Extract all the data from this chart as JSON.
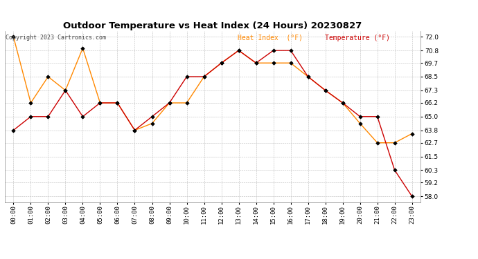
{
  "title": "Outdoor Temperature vs Heat Index (24 Hours) 20230827",
  "copyright": "Copyright 2023 Cartronics.com",
  "legend_heat_index": "Heat Index  (°F)",
  "legend_temperature": "Temperature (°F)",
  "hours": [
    "00:00",
    "01:00",
    "02:00",
    "03:00",
    "04:00",
    "05:00",
    "06:00",
    "07:00",
    "08:00",
    "09:00",
    "10:00",
    "11:00",
    "12:00",
    "13:00",
    "14:00",
    "15:00",
    "16:00",
    "17:00",
    "18:00",
    "19:00",
    "20:00",
    "21:00",
    "22:00",
    "23:00"
  ],
  "temperature": [
    63.8,
    65.0,
    65.0,
    67.3,
    65.0,
    66.2,
    66.2,
    63.8,
    65.0,
    66.2,
    68.5,
    68.5,
    69.7,
    70.8,
    69.7,
    70.8,
    70.8,
    68.5,
    67.3,
    66.2,
    65.0,
    65.0,
    60.3,
    58.0
  ],
  "heat_index": [
    72.0,
    66.2,
    68.5,
    67.3,
    71.0,
    66.2,
    66.2,
    63.8,
    64.4,
    66.2,
    66.2,
    68.5,
    69.7,
    70.8,
    69.7,
    69.7,
    69.7,
    68.5,
    67.3,
    66.2,
    64.4,
    62.7,
    62.7,
    63.5
  ],
  "temp_color": "#cc0000",
  "heat_index_color": "#ff8800",
  "marker_color": "#000000",
  "ylim_min": 57.5,
  "ylim_max": 72.5,
  "yticks": [
    58.0,
    59.2,
    60.3,
    61.5,
    62.7,
    63.8,
    65.0,
    66.2,
    67.3,
    68.5,
    69.7,
    70.8,
    72.0
  ],
  "background_color": "#ffffff",
  "grid_color": "#bbbbbb",
  "title_fontsize": 9.5,
  "tick_fontsize": 6.5,
  "legend_fontsize": 7,
  "copyright_fontsize": 6
}
